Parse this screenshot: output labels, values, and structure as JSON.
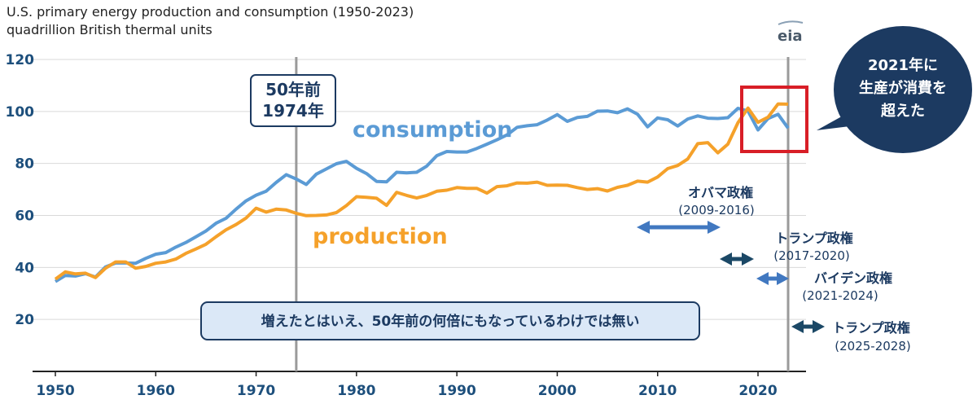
{
  "chart_data": {
    "type": "line",
    "title": "U.S. primary energy production and consumption (1950-2023)",
    "subtitle": "quadrillion British thermal units",
    "logo_text": "eia",
    "xlim": [
      1950,
      2023
    ],
    "ylim": [
      0,
      120
    ],
    "xticks": [
      1950,
      1960,
      1970,
      1980,
      1990,
      2000,
      2010,
      2020
    ],
    "yticks": [
      20,
      40,
      60,
      80,
      100,
      120
    ],
    "grid": true,
    "colors": {
      "consumption": "#5b9bd5",
      "production": "#f5a12a",
      "navy": "#1c3a61",
      "highlight": "#d81e27",
      "note_fill": "#dbe8f7"
    },
    "series": [
      {
        "name": "consumption",
        "points": [
          [
            1950,
            34.6
          ],
          [
            1951,
            36.9
          ],
          [
            1952,
            36.7
          ],
          [
            1953,
            37.6
          ],
          [
            1954,
            36.3
          ],
          [
            1955,
            40.2
          ],
          [
            1956,
            41.7
          ],
          [
            1957,
            41.7
          ],
          [
            1958,
            41.6
          ],
          [
            1959,
            43.5
          ],
          [
            1960,
            45.1
          ],
          [
            1961,
            45.7
          ],
          [
            1962,
            47.8
          ],
          [
            1963,
            49.6
          ],
          [
            1964,
            51.8
          ],
          [
            1965,
            54.0
          ],
          [
            1966,
            57.0
          ],
          [
            1967,
            58.9
          ],
          [
            1968,
            62.4
          ],
          [
            1969,
            65.6
          ],
          [
            1970,
            67.8
          ],
          [
            1971,
            69.3
          ],
          [
            1972,
            72.7
          ],
          [
            1973,
            75.7
          ],
          [
            1974,
            74.0
          ],
          [
            1975,
            71.9
          ],
          [
            1976,
            75.9
          ],
          [
            1977,
            77.9
          ],
          [
            1978,
            79.9
          ],
          [
            1979,
            80.8
          ],
          [
            1980,
            78.1
          ],
          [
            1981,
            76.1
          ],
          [
            1982,
            73.1
          ],
          [
            1983,
            72.9
          ],
          [
            1984,
            76.6
          ],
          [
            1985,
            76.4
          ],
          [
            1986,
            76.6
          ],
          [
            1987,
            79.0
          ],
          [
            1988,
            83.0
          ],
          [
            1989,
            84.6
          ],
          [
            1990,
            84.4
          ],
          [
            1991,
            84.4
          ],
          [
            1992,
            85.8
          ],
          [
            1993,
            87.4
          ],
          [
            1994,
            89.1
          ],
          [
            1995,
            91.0
          ],
          [
            1996,
            93.9
          ],
          [
            1997,
            94.5
          ],
          [
            1998,
            94.9
          ],
          [
            1999,
            96.7
          ],
          [
            2000,
            98.8
          ],
          [
            2001,
            96.2
          ],
          [
            2002,
            97.7
          ],
          [
            2003,
            98.1
          ],
          [
            2004,
            100.1
          ],
          [
            2005,
            100.2
          ],
          [
            2006,
            99.5
          ],
          [
            2007,
            101.0
          ],
          [
            2008,
            98.9
          ],
          [
            2009,
            94.1
          ],
          [
            2010,
            97.5
          ],
          [
            2011,
            96.8
          ],
          [
            2012,
            94.4
          ],
          [
            2013,
            97.1
          ],
          [
            2014,
            98.3
          ],
          [
            2015,
            97.4
          ],
          [
            2016,
            97.3
          ],
          [
            2017,
            97.6
          ],
          [
            2018,
            101.2
          ],
          [
            2019,
            100.2
          ],
          [
            2020,
            92.9
          ],
          [
            2021,
            97.3
          ],
          [
            2022,
            98.9
          ],
          [
            2023,
            93.6
          ]
        ]
      },
      {
        "name": "production",
        "points": [
          [
            1950,
            35.5
          ],
          [
            1951,
            38.3
          ],
          [
            1952,
            37.5
          ],
          [
            1953,
            37.8
          ],
          [
            1954,
            36.1
          ],
          [
            1955,
            39.7
          ],
          [
            1956,
            42.1
          ],
          [
            1957,
            42.1
          ],
          [
            1958,
            39.7
          ],
          [
            1959,
            40.4
          ],
          [
            1960,
            41.6
          ],
          [
            1961,
            42.1
          ],
          [
            1962,
            43.2
          ],
          [
            1963,
            45.4
          ],
          [
            1964,
            47.1
          ],
          [
            1965,
            48.9
          ],
          [
            1966,
            51.8
          ],
          [
            1967,
            54.5
          ],
          [
            1968,
            56.5
          ],
          [
            1969,
            59.0
          ],
          [
            1970,
            62.8
          ],
          [
            1971,
            61.3
          ],
          [
            1972,
            62.4
          ],
          [
            1973,
            62.1
          ],
          [
            1974,
            60.8
          ],
          [
            1975,
            59.9
          ],
          [
            1976,
            60.0
          ],
          [
            1977,
            60.2
          ],
          [
            1978,
            61.1
          ],
          [
            1979,
            63.8
          ],
          [
            1980,
            67.2
          ],
          [
            1981,
            67.0
          ],
          [
            1982,
            66.6
          ],
          [
            1983,
            63.9
          ],
          [
            1984,
            68.9
          ],
          [
            1985,
            67.7
          ],
          [
            1986,
            66.7
          ],
          [
            1987,
            67.7
          ],
          [
            1988,
            69.3
          ],
          [
            1989,
            69.7
          ],
          [
            1990,
            70.7
          ],
          [
            1991,
            70.4
          ],
          [
            1992,
            70.4
          ],
          [
            1993,
            68.6
          ],
          [
            1994,
            71.1
          ],
          [
            1995,
            71.4
          ],
          [
            1996,
            72.5
          ],
          [
            1997,
            72.4
          ],
          [
            1998,
            72.8
          ],
          [
            1999,
            71.6
          ],
          [
            2000,
            71.7
          ],
          [
            2001,
            71.6
          ],
          [
            2002,
            70.7
          ],
          [
            2003,
            70.0
          ],
          [
            2004,
            70.3
          ],
          [
            2005,
            69.4
          ],
          [
            2006,
            70.8
          ],
          [
            2007,
            71.6
          ],
          [
            2008,
            73.2
          ],
          [
            2009,
            72.8
          ],
          [
            2010,
            74.8
          ],
          [
            2011,
            78.0
          ],
          [
            2012,
            79.2
          ],
          [
            2013,
            81.7
          ],
          [
            2014,
            87.6
          ],
          [
            2015,
            88.0
          ],
          [
            2016,
            84.1
          ],
          [
            2017,
            87.4
          ],
          [
            2018,
            95.7
          ],
          [
            2019,
            101.3
          ],
          [
            2020,
            95.8
          ],
          [
            2021,
            97.8
          ],
          [
            2022,
            102.9
          ],
          [
            2023,
            102.8
          ]
        ]
      }
    ],
    "annotations": {
      "fifty_years_ago": {
        "line1": "50年前",
        "line2": "1974年",
        "year": 1974
      },
      "latest_year": 2023,
      "callout": {
        "line1": "2021年に",
        "line2": "生産が消費を",
        "line3": "超えた"
      },
      "bottom_note": "増えたとはいえ、50年前の何倍にもなっているわけでは無い",
      "eras": [
        {
          "label": "オバマ政権",
          "years": "(2009-2016)"
        },
        {
          "label": "トランプ政権",
          "years": "(2017-2020)"
        },
        {
          "label": "バイデン政権",
          "years": "(2021-2024)"
        },
        {
          "label": "トランプ政権",
          "years": "(2025-2028)"
        }
      ]
    }
  }
}
